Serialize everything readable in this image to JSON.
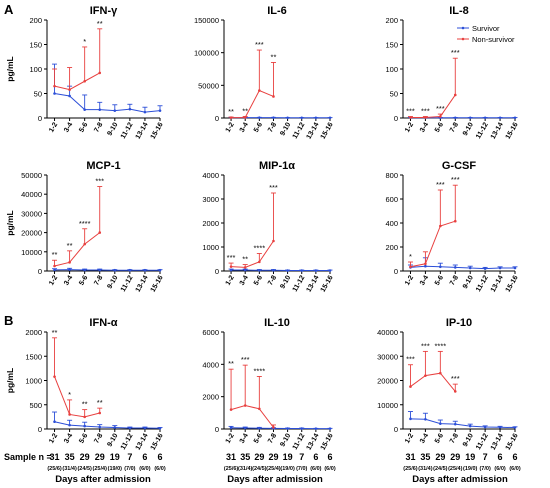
{
  "figure": {
    "panel_labels": [
      "A",
      "B"
    ],
    "sample_row": {
      "prefix": "Sample n =",
      "n": [
        "31",
        "35",
        "29",
        "29",
        "19",
        "7",
        "6",
        "6"
      ],
      "sub": [
        "(25/6)",
        "(31/4)",
        "(24/5)",
        "(25/4)",
        "(19/0)",
        "(7/0)",
        "(6/0)",
        "(6/0)"
      ]
    },
    "xlabel": "Days after admission"
  },
  "chart_data": [
    {
      "type": "line",
      "title": "IFN-γ",
      "ylabel": "pg/mL",
      "ylim": [
        0,
        200
      ],
      "yticks": [
        0,
        50,
        100,
        150,
        200
      ],
      "categories": [
        "1-2",
        "3-4",
        "5-6",
        "7-8",
        "9-10",
        "11-12",
        "13-14",
        "15-16"
      ],
      "series": [
        {
          "name": "Survivor",
          "color": "#2c4fd8",
          "values": [
            50,
            45,
            17,
            17,
            15,
            18,
            12,
            15
          ],
          "err": [
            60,
            20,
            30,
            15,
            12,
            10,
            10,
            10
          ]
        },
        {
          "name": "Non-survivor",
          "color": "#e8403f",
          "values": [
            65,
            58,
            75,
            92,
            null,
            null,
            null,
            null
          ],
          "err": [
            35,
            45,
            70,
            90,
            null,
            null,
            null,
            null
          ]
        }
      ],
      "stars": [
        "",
        "",
        "*",
        "**",
        "",
        "",
        "",
        ""
      ],
      "legend": false
    },
    {
      "type": "line",
      "title": "IL-6",
      "ylabel": "",
      "ylim": [
        0,
        150000
      ],
      "yticks": [
        0,
        50000,
        100000,
        150000
      ],
      "categories": [
        "1-2",
        "3-4",
        "5-6",
        "7-8",
        "9-10",
        "11-12",
        "13-14",
        "15-16"
      ],
      "series": [
        {
          "name": "Survivor",
          "color": "#2c4fd8",
          "values": [
            500,
            500,
            500,
            500,
            300,
            300,
            300,
            300
          ],
          "err": [
            500,
            500,
            500,
            500,
            300,
            300,
            300,
            300
          ]
        },
        {
          "name": "Non-survivor",
          "color": "#e8403f",
          "values": [
            500,
            800,
            42000,
            33000,
            null,
            null,
            null,
            null
          ],
          "err": [
            1000,
            1500,
            62000,
            52000,
            null,
            null,
            null,
            null
          ]
        }
      ],
      "stars": [
        "**",
        "**",
        "***",
        "**",
        "",
        "",
        "",
        ""
      ],
      "legend": false
    },
    {
      "type": "line",
      "title": "IL-8",
      "ylabel": "",
      "ylim": [
        0,
        200
      ],
      "yticks": [
        0,
        50,
        100,
        150,
        200
      ],
      "categories": [
        "1-2",
        "3-4",
        "5-6",
        "7-8",
        "9-10",
        "11-12",
        "13-14",
        "15-16"
      ],
      "series": [
        {
          "name": "Survivor",
          "color": "#2c4fd8",
          "values": [
            0.5,
            0.5,
            0.5,
            0.5,
            0.5,
            0.5,
            0.5,
            0.5
          ],
          "err": [
            0.5,
            0.5,
            0.5,
            0.5,
            0.5,
            0.5,
            0.5,
            0.5
          ]
        },
        {
          "name": "Non-survivor",
          "color": "#e8403f",
          "values": [
            1,
            1,
            3,
            47,
            null,
            null,
            null,
            null
          ],
          "err": [
            2,
            2,
            5,
            75,
            null,
            null,
            null,
            null
          ]
        }
      ],
      "stars": [
        "***",
        "***",
        "***",
        "***",
        "",
        "",
        "",
        ""
      ],
      "legend": true
    },
    {
      "type": "line",
      "title": "MCP-1",
      "ylabel": "pg/mL",
      "ylim": [
        0,
        50000
      ],
      "yticks": [
        0,
        10000,
        20000,
        30000,
        40000,
        50000
      ],
      "categories": [
        "1-2",
        "3-4",
        "5-6",
        "7-8",
        "9-10",
        "11-12",
        "13-14",
        "15-16"
      ],
      "series": [
        {
          "name": "Survivor",
          "color": "#2c4fd8",
          "values": [
            600,
            700,
            500,
            500,
            400,
            400,
            400,
            400
          ],
          "err": [
            600,
            700,
            500,
            500,
            300,
            300,
            300,
            300
          ]
        },
        {
          "name": "Non-survivor",
          "color": "#e8403f",
          "values": [
            2600,
            4500,
            14000,
            20000,
            null,
            null,
            null,
            null
          ],
          "err": [
            3000,
            6000,
            8000,
            24000,
            null,
            null,
            null,
            null
          ]
        }
      ],
      "stars": [
        "**",
        "**",
        "****",
        "***",
        "",
        "",
        "",
        ""
      ],
      "legend": false
    },
    {
      "type": "line",
      "title": "MIP-1α",
      "ylabel": "",
      "ylim": [
        0,
        4000
      ],
      "yticks": [
        0,
        1000,
        2000,
        3000,
        4000
      ],
      "categories": [
        "1-2",
        "3-4",
        "5-6",
        "7-8",
        "9-10",
        "11-12",
        "13-14",
        "15-16"
      ],
      "series": [
        {
          "name": "Survivor",
          "color": "#2c4fd8",
          "values": [
            40,
            40,
            30,
            30,
            20,
            20,
            20,
            20
          ],
          "err": [
            40,
            40,
            30,
            30,
            20,
            20,
            20,
            20
          ]
        },
        {
          "name": "Non-survivor",
          "color": "#e8403f",
          "values": [
            180,
            150,
            380,
            1250,
            null,
            null,
            null,
            null
          ],
          "err": [
            150,
            120,
            350,
            2000,
            null,
            null,
            null,
            null
          ]
        }
      ],
      "stars": [
        "***",
        "**",
        "****",
        "***",
        "",
        "",
        "",
        ""
      ],
      "legend": false
    },
    {
      "type": "line",
      "title": "G-CSF",
      "ylabel": "",
      "ylim": [
        0,
        800
      ],
      "yticks": [
        0,
        200,
        400,
        600,
        800
      ],
      "categories": [
        "1-2",
        "3-4",
        "5-6",
        "7-8",
        "9-10",
        "11-12",
        "13-14",
        "15-16"
      ],
      "series": [
        {
          "name": "Survivor",
          "color": "#2c4fd8",
          "values": [
            30,
            40,
            35,
            30,
            25,
            20,
            25,
            25
          ],
          "err": [
            20,
            70,
            30,
            20,
            15,
            10,
            10,
            10
          ]
        },
        {
          "name": "Non-survivor",
          "color": "#e8403f",
          "values": [
            35,
            60,
            375,
            415,
            null,
            null,
            null,
            null
          ],
          "err": [
            40,
            100,
            300,
            300,
            null,
            null,
            null,
            null
          ]
        }
      ],
      "stars": [
        "*",
        "",
        "***",
        "***",
        "",
        "",
        "",
        ""
      ],
      "legend": false
    },
    {
      "type": "line",
      "title": "IFN-α",
      "ylabel": "pg/mL",
      "ylim": [
        0,
        2000
      ],
      "yticks": [
        0,
        500,
        1000,
        1500,
        2000
      ],
      "categories": [
        "1-2",
        "3-4",
        "5-6",
        "7-8",
        "9-10",
        "11-12",
        "13-14",
        "15-16"
      ],
      "series": [
        {
          "name": "Survivor",
          "color": "#2c4fd8",
          "values": [
            150,
            80,
            60,
            40,
            30,
            20,
            20,
            15
          ],
          "err": [
            200,
            100,
            80,
            50,
            40,
            20,
            20,
            15
          ]
        },
        {
          "name": "Non-survivor",
          "color": "#e8403f",
          "values": [
            1080,
            300,
            250,
            330,
            null,
            null,
            null,
            null
          ],
          "err": [
            800,
            300,
            150,
            100,
            null,
            null,
            null,
            null
          ]
        }
      ],
      "stars": [
        "**",
        "*",
        "**",
        "**",
        "",
        "",
        "",
        ""
      ],
      "legend": false
    },
    {
      "type": "line",
      "title": "IL-10",
      "ylabel": "",
      "ylim": [
        0,
        6000
      ],
      "yticks": [
        0,
        2000,
        4000,
        6000
      ],
      "categories": [
        "1-2",
        "3-4",
        "5-6",
        "7-8",
        "9-10",
        "11-12",
        "13-14",
        "15-16"
      ],
      "series": [
        {
          "name": "Survivor",
          "color": "#2c4fd8",
          "values": [
            80,
            60,
            50,
            40,
            30,
            30,
            20,
            20
          ],
          "err": [
            80,
            60,
            50,
            40,
            30,
            30,
            20,
            20
          ]
        },
        {
          "name": "Non-survivor",
          "color": "#e8403f",
          "values": [
            1200,
            1450,
            1250,
            100,
            null,
            null,
            null,
            null
          ],
          "err": [
            2500,
            2500,
            2000,
            150,
            null,
            null,
            null,
            null
          ]
        }
      ],
      "stars": [
        "**",
        "***",
        "****",
        "",
        "",
        "",
        "",
        ""
      ],
      "legend": false
    },
    {
      "type": "line",
      "title": "IP-10",
      "ylabel": "",
      "ylim": [
        0,
        40000
      ],
      "yticks": [
        0,
        10000,
        20000,
        30000,
        40000
      ],
      "categories": [
        "1-2",
        "3-4",
        "5-6",
        "7-8",
        "9-10",
        "11-12",
        "13-14",
        "15-16"
      ],
      "series": [
        {
          "name": "Survivor",
          "color": "#2c4fd8",
          "values": [
            4200,
            4000,
            2200,
            2000,
            1200,
            800,
            700,
            600
          ],
          "err": [
            3000,
            2500,
            1500,
            1200,
            800,
            500,
            400,
            300
          ]
        },
        {
          "name": "Non-survivor",
          "color": "#e8403f",
          "values": [
            17500,
            22000,
            23000,
            15500,
            null,
            null,
            null,
            null
          ],
          "err": [
            9000,
            10000,
            9000,
            3000,
            null,
            null,
            null,
            null
          ]
        }
      ],
      "stars": [
        "***",
        "***",
        "****",
        "***",
        "",
        "",
        "",
        ""
      ],
      "legend": false
    }
  ]
}
